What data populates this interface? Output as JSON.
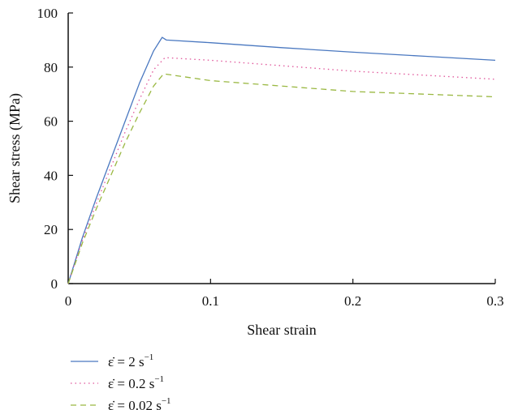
{
  "chart_data": {
    "type": "line",
    "xlabel": "Shear strain",
    "ylabel": "Shear stress (MPa)",
    "xlim": [
      0,
      0.3
    ],
    "ylim": [
      0,
      100
    ],
    "xticks": [
      0,
      0.1,
      0.2,
      0.3
    ],
    "xtick_labels": [
      "0",
      "0.1",
      "0.2",
      "0.3"
    ],
    "yticks": [
      0,
      20,
      40,
      60,
      80,
      100
    ],
    "ytick_labels": [
      "0",
      "20",
      "40",
      "60",
      "80",
      "100"
    ],
    "grid": false,
    "legend_position": "bottom-left",
    "series": [
      {
        "name_main": "ε̇ = 2 s",
        "name_sup": "−1",
        "color": "#4a78c0",
        "style": "solid",
        "x": [
          0,
          0.01,
          0.02,
          0.03,
          0.04,
          0.05,
          0.06,
          0.066,
          0.069,
          0.1,
          0.15,
          0.2,
          0.25,
          0.3
        ],
        "y": [
          0,
          17,
          32,
          46,
          60,
          74,
          86,
          91,
          90,
          89,
          87.2,
          85.5,
          84,
          82.5
        ]
      },
      {
        "name_main": "ε̇ = 0.2 s",
        "name_sup": "−1",
        "color": "#e0559a",
        "style": "dotted",
        "x": [
          0,
          0.01,
          0.02,
          0.03,
          0.04,
          0.05,
          0.06,
          0.068,
          0.1,
          0.15,
          0.2,
          0.25,
          0.3
        ],
        "y": [
          0,
          16,
          30,
          43,
          56,
          68,
          79,
          83.5,
          82.5,
          80.5,
          78.5,
          77,
          75.5
        ]
      },
      {
        "name_main": "ε̇ = 0.02 s",
        "name_sup": "−1",
        "color": "#9ab842",
        "style": "dashed",
        "x": [
          0,
          0.01,
          0.02,
          0.03,
          0.04,
          0.05,
          0.06,
          0.067,
          0.1,
          0.15,
          0.2,
          0.25,
          0.3
        ],
        "y": [
          0,
          15,
          28,
          40,
          52,
          63,
          73,
          77.5,
          75,
          73,
          71,
          70,
          69
        ]
      }
    ]
  }
}
